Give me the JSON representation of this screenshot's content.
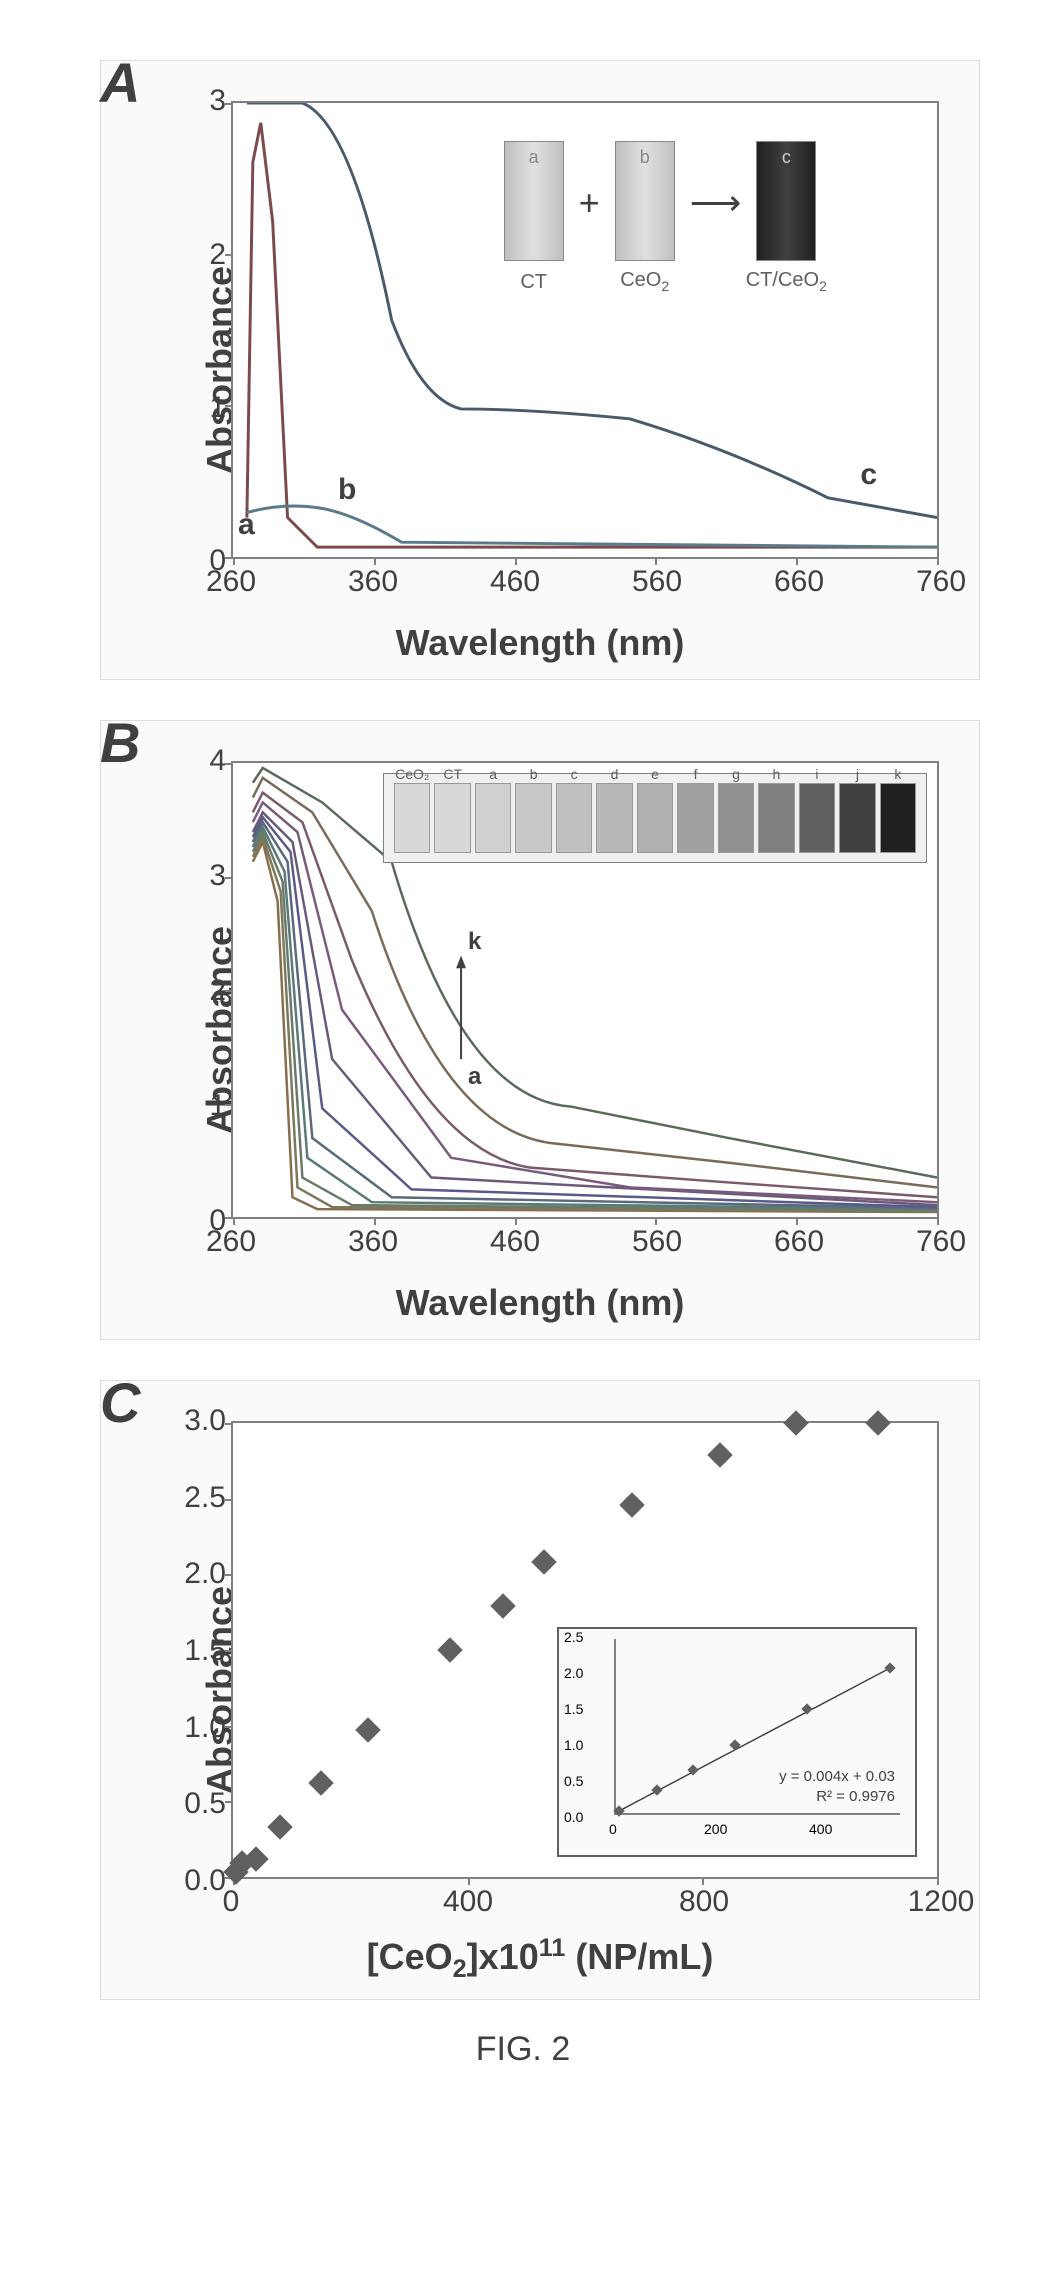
{
  "figure_caption": "FIG. 2",
  "panelA": {
    "label": "A",
    "y_label": "Absorbance",
    "x_label": "Wavelength (nm)",
    "y_ticks": [
      0,
      1,
      2,
      3
    ],
    "x_ticks": [
      260,
      360,
      460,
      560,
      660,
      760
    ],
    "curve_labels": [
      "a",
      "b",
      "c"
    ],
    "curve_colors": [
      "#7b4b4b",
      "#5a7b8a",
      "#4a5a6a"
    ],
    "cuvette_labels": [
      "a",
      "b",
      "c"
    ],
    "cuvette_captions": [
      "CT",
      "CeO₂",
      "CT/CeO₂"
    ],
    "plus": "+",
    "arrow": "→",
    "curves": {
      "a": {
        "desc": "sharp peak ~280nm dropping to 0 by 320nm"
      },
      "b": {
        "desc": "broad low peak ~300nm max 0.3 to 0 by 400nm"
      },
      "c": {
        "desc": "high ~3 at 280nm, plateau ~1 at 400-500nm, decay to 0.3 at 760nm"
      }
    }
  },
  "panelB": {
    "label": "B",
    "y_label": "Absorbance",
    "x_label": "Wavelength (nm)",
    "y_ticks": [
      0,
      1,
      2,
      3,
      4
    ],
    "x_ticks": [
      260,
      360,
      460,
      560,
      660,
      760
    ],
    "series_labels": [
      "a",
      "b",
      "c",
      "d",
      "e",
      "f",
      "g",
      "h",
      "i",
      "j",
      "k"
    ],
    "arrow_annotation": {
      "from": "a",
      "to": "k"
    },
    "cuvette_header_labels": [
      "CeO₂",
      "CT",
      "a",
      "b",
      "c",
      "d",
      "e",
      "f",
      "g",
      "h",
      "i",
      "j",
      "k"
    ],
    "series_colors": [
      "#8a6d4d",
      "#7a7a5a",
      "#6a7a6a",
      "#5a7a7a",
      "#5a6a7a",
      "#5a5a8a",
      "#6a5a7a",
      "#7a5a7a",
      "#7a5a6a",
      "#7a6a5a",
      "#5a6a5a"
    ]
  },
  "panelC": {
    "label": "C",
    "y_label": "Absorbance",
    "x_label": "[CeO₂]x10¹¹ (NP/mL)",
    "y_ticks": [
      "0.0",
      "0.5",
      "1.0",
      "1.5",
      "2.0",
      "2.5",
      "3.0"
    ],
    "x_ticks": [
      0,
      400,
      800,
      1200
    ],
    "data_points": [
      {
        "x": 5,
        "y": 0.03
      },
      {
        "x": 15,
        "y": 0.09
      },
      {
        "x": 40,
        "y": 0.12
      },
      {
        "x": 80,
        "y": 0.33
      },
      {
        "x": 150,
        "y": 0.62
      },
      {
        "x": 230,
        "y": 0.97
      },
      {
        "x": 370,
        "y": 1.5
      },
      {
        "x": 460,
        "y": 1.79
      },
      {
        "x": 530,
        "y": 2.08
      },
      {
        "x": 680,
        "y": 2.46
      },
      {
        "x": 830,
        "y": 2.79
      },
      {
        "x": 960,
        "y": 3.0
      },
      {
        "x": 1100,
        "y": 3.1
      }
    ],
    "inset": {
      "y_ticks": [
        "0.0",
        "0.5",
        "1.0",
        "1.5",
        "2.0",
        "2.5"
      ],
      "x_ticks": [
        0,
        200,
        400
      ],
      "equation": "y = 0.004x + 0.03",
      "r_squared": "R² = 0.9976",
      "fit_points": [
        {
          "x": 5,
          "y": 0.03
        },
        {
          "x": 80,
          "y": 0.33
        },
        {
          "x": 150,
          "y": 0.62
        },
        {
          "x": 230,
          "y": 0.97
        },
        {
          "x": 370,
          "y": 1.5
        },
        {
          "x": 530,
          "y": 2.08
        }
      ]
    }
  },
  "styling": {
    "background": "#ffffff",
    "axis_color": "#808080",
    "text_color": "#404040",
    "label_fontsize": 36,
    "tick_fontsize": 30,
    "panel_label_fontsize": 56
  }
}
